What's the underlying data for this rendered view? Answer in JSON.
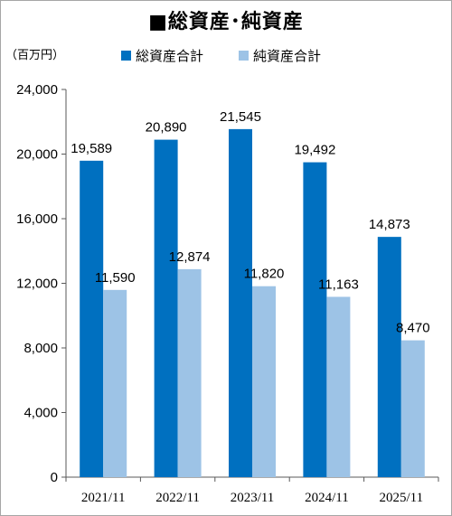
{
  "chart_data": {
    "type": "bar",
    "title": "■総資産･純資産",
    "unit_label": "（百万円）",
    "categories": [
      "2021/11",
      "2022/11",
      "2023/11",
      "2024/11",
      "2025/11"
    ],
    "series": [
      {
        "name": "総資産合計",
        "color": "#0070c0",
        "values": [
          19589,
          20890,
          21545,
          19492,
          14873
        ]
      },
      {
        "name": "純資産合計",
        "color": "#9dc3e6",
        "values": [
          11590,
          12874,
          11820,
          11163,
          8470
        ]
      }
    ],
    "data_labels": [
      [
        "19,589",
        "20,890",
        "21,545",
        "19,492",
        "14,873"
      ],
      [
        "11,590",
        "12,874",
        "11,820",
        "11,163",
        "8,470"
      ]
    ],
    "ylim": [
      0,
      24000
    ],
    "yticks": [
      0,
      4000,
      8000,
      12000,
      16000,
      20000,
      24000
    ],
    "ytick_labels": [
      "0",
      "4,000",
      "8,000",
      "12,000",
      "16,000",
      "20,000",
      "24,000"
    ],
    "grid": false,
    "legend_position": "top"
  }
}
